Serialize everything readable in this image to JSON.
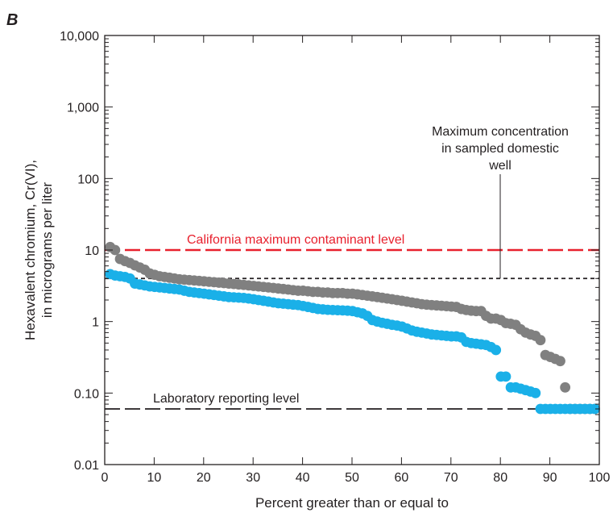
{
  "chart_data": {
    "type": "scatter",
    "panel_label": "B",
    "xlabel": "Percent greater than or equal to",
    "ylabel_line1": "Hexavalent chromium, Cr(VI),",
    "ylabel_line2": "in micrograms per liter",
    "xlim": [
      0,
      100
    ],
    "ylim": [
      0.01,
      10000
    ],
    "y_scale": "log",
    "grid": false,
    "x_ticks": [
      0,
      10,
      20,
      30,
      40,
      50,
      60,
      70,
      80,
      90,
      100
    ],
    "x_tick_labels": [
      "0",
      "10",
      "20",
      "30",
      "40",
      "50",
      "60",
      "70",
      "80",
      "90",
      "100"
    ],
    "y_ticks": [
      0.01,
      0.1,
      1,
      10,
      100,
      1000,
      10000
    ],
    "y_tick_labels": [
      "0.01",
      "0.10",
      "1",
      "10",
      "100",
      "1,000",
      "10,000"
    ],
    "colors": {
      "gray_series": "#808080",
      "blue_series": "#1ab0e8",
      "mcl_line": "#e8212e",
      "reference": "#231f20"
    },
    "reference_lines": [
      {
        "label": "California maximum contaminant level",
        "y": 10,
        "style": "long-dash",
        "color": "#e8212e"
      },
      {
        "label": "Maximum concentration in sampled domestic well",
        "y": 4,
        "style": "short-dash",
        "color": "#231f20"
      },
      {
        "label": "Laboratory reporting level",
        "y": 0.06,
        "style": "long-dash",
        "color": "#231f20"
      }
    ],
    "annotations": {
      "mcl": "California maximum contaminant level",
      "max_conc_lines": [
        "Maximum concentration",
        "in sampled domestic",
        "well"
      ],
      "lrl": "Laboratory reporting level"
    },
    "series": [
      {
        "color": "#808080",
        "points": [
          [
            1.1,
            11
          ],
          [
            2.1,
            10
          ],
          [
            3.1,
            7.5
          ],
          [
            4.1,
            7
          ],
          [
            5.1,
            6.6
          ],
          [
            6.1,
            6.1
          ],
          [
            7.1,
            5.7
          ],
          [
            8.1,
            5.3
          ],
          [
            9.1,
            4.7
          ],
          [
            10.1,
            4.5
          ],
          [
            11.1,
            4.3
          ],
          [
            12.1,
            4.2
          ],
          [
            13.1,
            4.1
          ],
          [
            14.1,
            4.0
          ],
          [
            15.1,
            3.9
          ],
          [
            16.1,
            3.85
          ],
          [
            17.1,
            3.8
          ],
          [
            18.1,
            3.75
          ],
          [
            19.1,
            3.7
          ],
          [
            20.1,
            3.65
          ],
          [
            21.1,
            3.6
          ],
          [
            22.1,
            3.55
          ],
          [
            23.1,
            3.5
          ],
          [
            24.1,
            3.45
          ],
          [
            25.1,
            3.4
          ],
          [
            26.1,
            3.35
          ],
          [
            27.1,
            3.3
          ],
          [
            28.1,
            3.25
          ],
          [
            29.1,
            3.2
          ],
          [
            30.1,
            3.15
          ],
          [
            31.1,
            3.1
          ],
          [
            32.1,
            3.05
          ],
          [
            33.1,
            3.0
          ],
          [
            34.1,
            2.95
          ],
          [
            35.1,
            2.9
          ],
          [
            36.1,
            2.85
          ],
          [
            37.1,
            2.8
          ],
          [
            38.1,
            2.75
          ],
          [
            39.1,
            2.7
          ],
          [
            40.1,
            2.7
          ],
          [
            41.1,
            2.65
          ],
          [
            42.1,
            2.6
          ],
          [
            43.1,
            2.6
          ],
          [
            44.1,
            2.55
          ],
          [
            45.1,
            2.55
          ],
          [
            46.1,
            2.5
          ],
          [
            47.1,
            2.5
          ],
          [
            48.1,
            2.5
          ],
          [
            49.1,
            2.45
          ],
          [
            50.1,
            2.45
          ],
          [
            51.1,
            2.4
          ],
          [
            52.1,
            2.35
          ],
          [
            53.1,
            2.3
          ],
          [
            54.1,
            2.25
          ],
          [
            55.1,
            2.2
          ],
          [
            56.1,
            2.15
          ],
          [
            57.1,
            2.1
          ],
          [
            58.1,
            2.05
          ],
          [
            59.1,
            2.0
          ],
          [
            60.1,
            1.95
          ],
          [
            61.1,
            1.9
          ],
          [
            62.1,
            1.85
          ],
          [
            63.1,
            1.8
          ],
          [
            64.1,
            1.75
          ],
          [
            65.1,
            1.72
          ],
          [
            66.1,
            1.7
          ],
          [
            67.1,
            1.68
          ],
          [
            68.1,
            1.66
          ],
          [
            69.1,
            1.64
          ],
          [
            70.1,
            1.62
          ],
          [
            71.1,
            1.6
          ],
          [
            72.1,
            1.5
          ],
          [
            73.1,
            1.45
          ],
          [
            74.1,
            1.42
          ],
          [
            75.1,
            1.4
          ],
          [
            76.1,
            1.4
          ],
          [
            77.1,
            1.2
          ],
          [
            78.1,
            1.1
          ],
          [
            79.1,
            1.1
          ],
          [
            80.1,
            1.05
          ],
          [
            81.1,
            0.95
          ],
          [
            82.1,
            0.93
          ],
          [
            83.1,
            0.9
          ],
          [
            84.1,
            0.78
          ],
          [
            85.1,
            0.7
          ],
          [
            86.1,
            0.66
          ],
          [
            87.1,
            0.63
          ],
          [
            88.1,
            0.55
          ],
          [
            89.1,
            0.34
          ],
          [
            90.1,
            0.32
          ],
          [
            91.1,
            0.3
          ],
          [
            92.1,
            0.28
          ],
          [
            93.1,
            0.12
          ],
          [
            94.1,
            0.06
          ],
          [
            95.1,
            0.06
          ],
          [
            96.1,
            0.06
          ],
          [
            97.1,
            0.06
          ],
          [
            98.1,
            0.06
          ],
          [
            99.1,
            0.06
          ]
        ]
      },
      {
        "color": "#1ab0e8",
        "points": [
          [
            1.1,
            4.6
          ],
          [
            2.1,
            4.4
          ],
          [
            3.1,
            4.3
          ],
          [
            4.1,
            4.2
          ],
          [
            5.1,
            4.0
          ],
          [
            6.1,
            3.4
          ],
          [
            7.1,
            3.3
          ],
          [
            8.1,
            3.2
          ],
          [
            9.1,
            3.1
          ],
          [
            10.1,
            3.05
          ],
          [
            11.1,
            3.0
          ],
          [
            12.1,
            2.95
          ],
          [
            13.1,
            2.9
          ],
          [
            14.1,
            2.85
          ],
          [
            15.1,
            2.8
          ],
          [
            16.1,
            2.7
          ],
          [
            17.1,
            2.6
          ],
          [
            18.1,
            2.55
          ],
          [
            19.1,
            2.5
          ],
          [
            20.1,
            2.45
          ],
          [
            21.1,
            2.4
          ],
          [
            22.1,
            2.35
          ],
          [
            23.1,
            2.3
          ],
          [
            24.1,
            2.25
          ],
          [
            25.1,
            2.2
          ],
          [
            26.1,
            2.18
          ],
          [
            27.1,
            2.16
          ],
          [
            28.1,
            2.14
          ],
          [
            29.1,
            2.1
          ],
          [
            30.1,
            2.05
          ],
          [
            31.1,
            2.0
          ],
          [
            32.1,
            1.95
          ],
          [
            33.1,
            1.9
          ],
          [
            34.1,
            1.85
          ],
          [
            35.1,
            1.8
          ],
          [
            36.1,
            1.78
          ],
          [
            37.1,
            1.75
          ],
          [
            38.1,
            1.72
          ],
          [
            39.1,
            1.7
          ],
          [
            40.1,
            1.65
          ],
          [
            41.1,
            1.6
          ],
          [
            42.1,
            1.55
          ],
          [
            43.1,
            1.5
          ],
          [
            44.1,
            1.48
          ],
          [
            45.1,
            1.46
          ],
          [
            46.1,
            1.45
          ],
          [
            47.1,
            1.44
          ],
          [
            48.1,
            1.43
          ],
          [
            49.1,
            1.42
          ],
          [
            50.1,
            1.4
          ],
          [
            51.1,
            1.35
          ],
          [
            52.1,
            1.3
          ],
          [
            53.1,
            1.2
          ],
          [
            54.1,
            1.05
          ],
          [
            55.1,
            1.0
          ],
          [
            56.1,
            0.96
          ],
          [
            57.1,
            0.93
          ],
          [
            58.1,
            0.9
          ],
          [
            59.1,
            0.88
          ],
          [
            60.1,
            0.85
          ],
          [
            61.1,
            0.8
          ],
          [
            62.1,
            0.75
          ],
          [
            63.1,
            0.72
          ],
          [
            64.1,
            0.7
          ],
          [
            65.1,
            0.68
          ],
          [
            66.1,
            0.66
          ],
          [
            67.1,
            0.65
          ],
          [
            68.1,
            0.64
          ],
          [
            69.1,
            0.63
          ],
          [
            70.1,
            0.62
          ],
          [
            71.1,
            0.62
          ],
          [
            72.1,
            0.6
          ],
          [
            73.1,
            0.52
          ],
          [
            74.1,
            0.5
          ],
          [
            75.1,
            0.49
          ],
          [
            76.1,
            0.48
          ],
          [
            77.1,
            0.47
          ],
          [
            78.1,
            0.44
          ],
          [
            79.1,
            0.4
          ],
          [
            80.1,
            0.17
          ],
          [
            81.1,
            0.17
          ],
          [
            82.1,
            0.12
          ],
          [
            83.1,
            0.12
          ],
          [
            84.1,
            0.115
          ],
          [
            85.1,
            0.11
          ],
          [
            86.1,
            0.105
          ],
          [
            87.1,
            0.1
          ],
          [
            88.1,
            0.06
          ],
          [
            89.1,
            0.06
          ],
          [
            90.1,
            0.06
          ],
          [
            91.1,
            0.06
          ],
          [
            92.1,
            0.06
          ],
          [
            93.1,
            0.06
          ],
          [
            94.1,
            0.06
          ],
          [
            95.1,
            0.06
          ],
          [
            96.1,
            0.06
          ],
          [
            97.1,
            0.06
          ],
          [
            98.1,
            0.06
          ],
          [
            99.1,
            0.06
          ]
        ]
      }
    ]
  }
}
